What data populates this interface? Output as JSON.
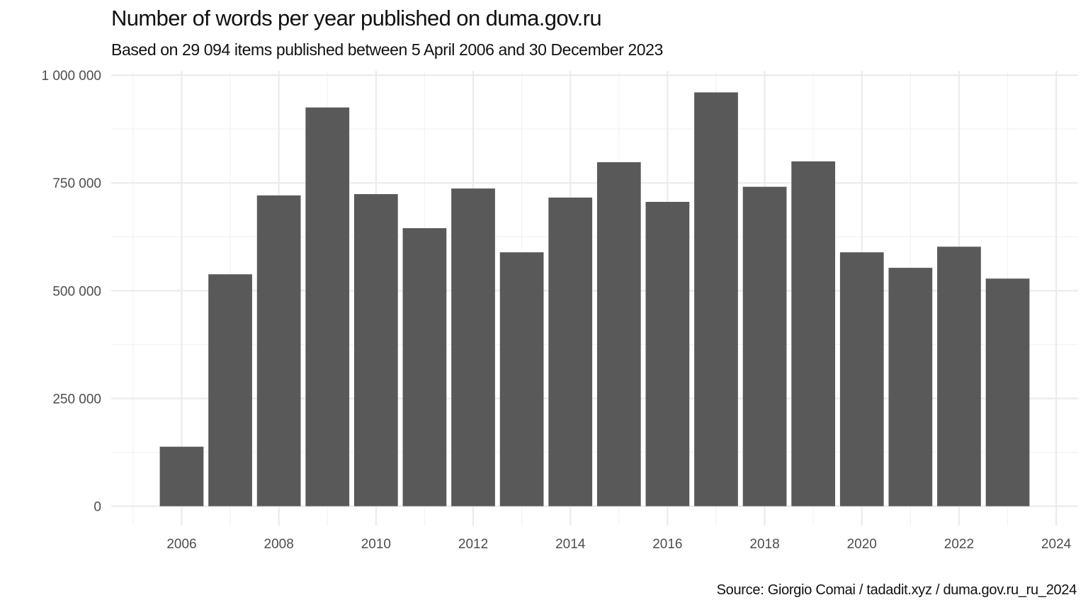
{
  "chart_data": {
    "type": "bar",
    "title": "Number of words per year published on duma.gov.ru",
    "subtitle": "Based on 29 094 items published between 5 April 2006 and 30 December 2023",
    "caption": "Source: Giorgio Comai / tadadit.xyz / duma.gov.ru_ru_2024",
    "xlabel": "",
    "ylabel": "",
    "categories": [
      2006,
      2007,
      2008,
      2009,
      2010,
      2011,
      2012,
      2013,
      2014,
      2015,
      2016,
      2017,
      2018,
      2019,
      2020,
      2021,
      2022,
      2023
    ],
    "values": [
      138000,
      538000,
      721000,
      925000,
      724000,
      645000,
      737000,
      589000,
      716000,
      798000,
      706000,
      960000,
      741000,
      800000,
      589000,
      553000,
      602000,
      528000
    ],
    "xlim": [
      2004.55,
      2024.45
    ],
    "ylim": [
      -45000,
      1010000
    ],
    "x_ticks": [
      2006,
      2008,
      2010,
      2012,
      2014,
      2016,
      2018,
      2020,
      2022,
      2024
    ],
    "x_tick_labels": [
      "2006",
      "2008",
      "2010",
      "2012",
      "2014",
      "2016",
      "2018",
      "2020",
      "2022",
      "2024"
    ],
    "y_ticks": [
      0,
      250000,
      500000,
      750000,
      1000000
    ],
    "y_tick_labels": [
      "0",
      "250 000",
      "500 000",
      "750 000",
      "1 000 000"
    ],
    "grid": true,
    "legend": "none",
    "bar_color": "#595959",
    "grid_major_color": "#ebebeb",
    "grid_minor_color": "#f2f2f2"
  }
}
